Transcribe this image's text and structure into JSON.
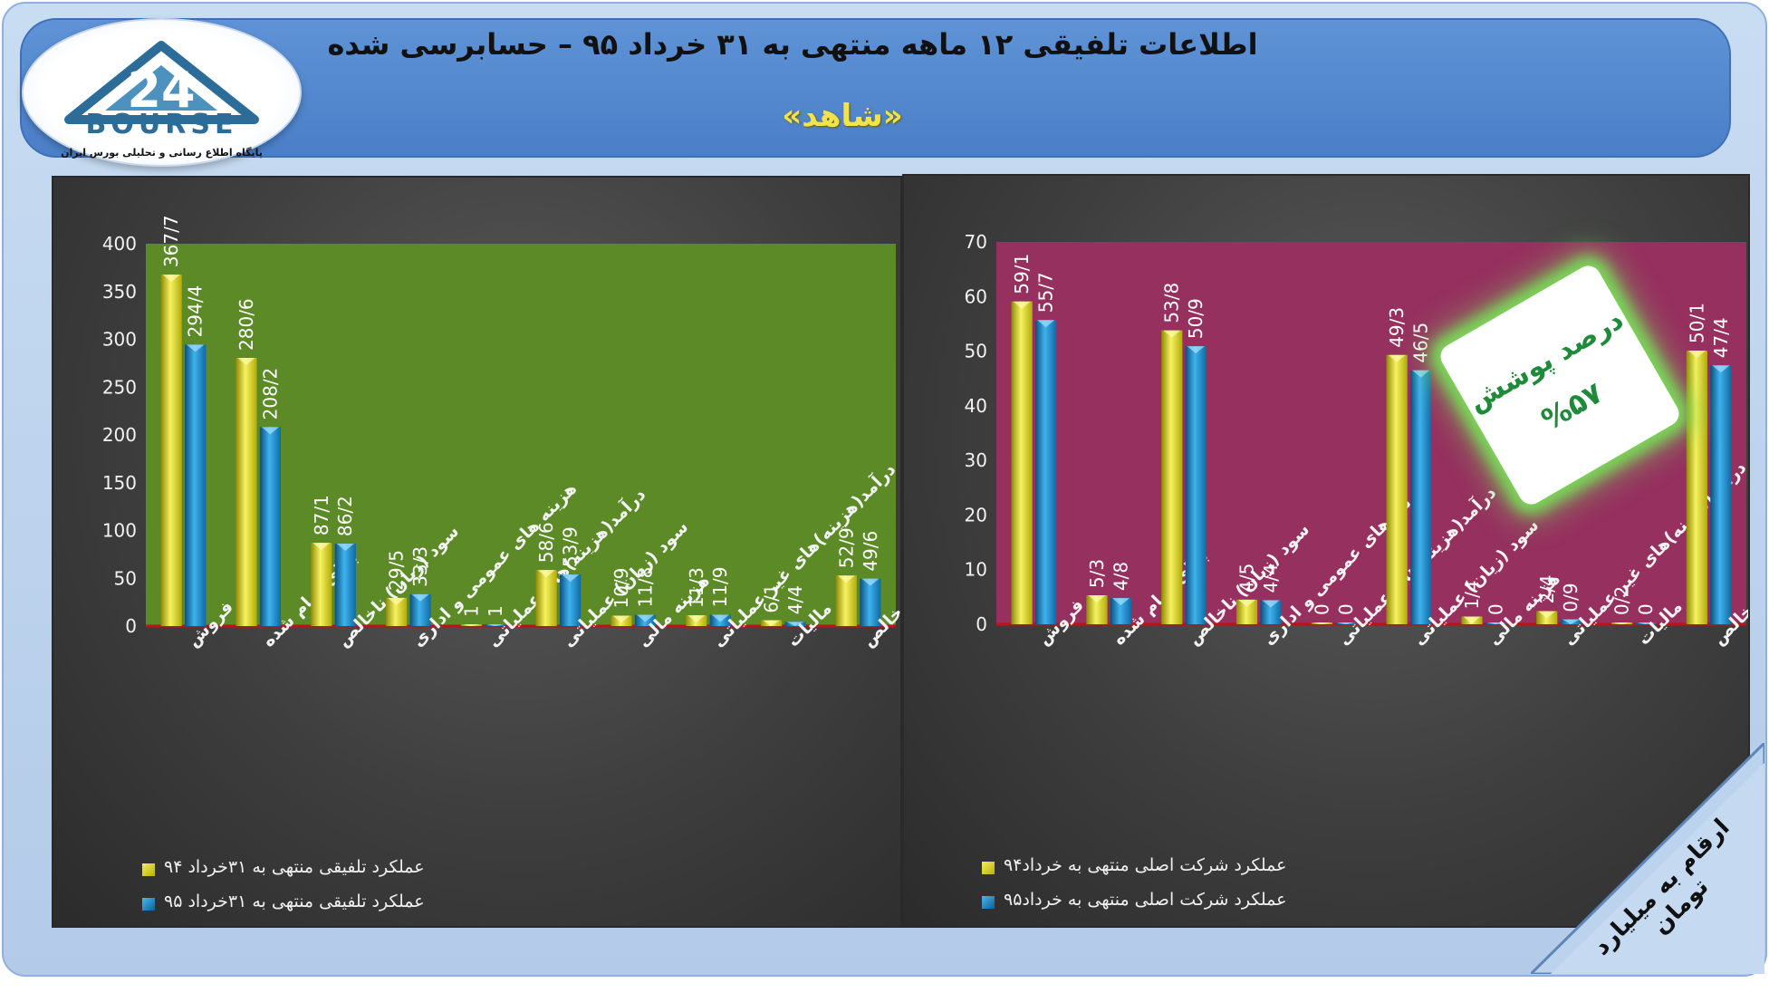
{
  "header": {
    "title": "اطلاعات تلفیقی ۱۲ ماهه منتهی به ۳۱ خرداد ۹۵ – حسابرسی شده",
    "subtitle": "«شاهد»"
  },
  "logo": {
    "number": "24",
    "word": "BOURSE",
    "tagline": "پایگاه اطلاع رسانی و تحلیلی بورس ایران"
  },
  "badge": {
    "line1": "درصد پوشش",
    "line2": "%۵۷"
  },
  "corner_note": "ارقام به میلیارد تومان",
  "colors": {
    "yellow_series": "#e9e21a",
    "blue_series": "#1f8fd1",
    "left_plot_bg": "#5b8a26",
    "right_plot_bg": "#96315f",
    "header_bg": "#4f86cc",
    "subtitle_text": "#f3e34a"
  },
  "chart_data": [
    {
      "type": "bar",
      "title": "",
      "ylim": [
        0,
        400
      ],
      "yticks": [
        0,
        50,
        100,
        150,
        200,
        250,
        300,
        350,
        400
      ],
      "grid": false,
      "legend_placement": "bottom-left",
      "categories": [
        "فروش",
        "بهای تمام شده",
        "سود (زیان) ناخالص",
        "هزینه های عمومی و اداری",
        "درآمد(هزینه)های عملیاتی",
        "سود (زیان) عملیاتی",
        "هزینه مالی",
        "درآمد(هزینه)های غیر عملیاتی",
        "مالیات",
        "سود خالص"
      ],
      "series": [
        {
          "name": "عملکرد تلفیقی منتهی به ۳۱خرداد ۹۴",
          "color": "#e9e21a",
          "values": [
            367.7,
            280.6,
            87.1,
            29.5,
            1,
            58.6,
            10.9,
            11.3,
            6.1,
            52.9
          ],
          "labels": [
            "367/7",
            "280/6",
            "87/1",
            "29/5",
            "1",
            "58/6",
            "10/9",
            "11/3",
            "6/1",
            "52/9"
          ]
        },
        {
          "name": "عملکرد تلفیقی منتهی به ۳۱خرداد ۹۵",
          "color": "#1f8fd1",
          "values": [
            294.4,
            208.2,
            86.2,
            33.3,
            1,
            53.9,
            11.8,
            11.9,
            4.4,
            49.6
          ],
          "labels": [
            "294/4",
            "208/2",
            "86/2",
            "33/3",
            "1",
            "53/9",
            "11/8",
            "11/9",
            "4/4",
            "49/6"
          ]
        }
      ]
    },
    {
      "type": "bar",
      "title": "",
      "ylim": [
        0,
        70
      ],
      "yticks": [
        0,
        10,
        20,
        30,
        40,
        50,
        60,
        70
      ],
      "grid": false,
      "legend_placement": "bottom-left",
      "categories": [
        "فروش",
        "بهای تمام شده",
        "سود (زیان) ناخالص",
        "هزینه های عمومی و اداری",
        "درآمد(هزینه)های عملیاتی",
        "سود (زیان) عملیاتی",
        "هزینه مالی",
        "درآمد(هزینه)های غیر عملیاتی",
        "مالیات",
        "سود خالص"
      ],
      "series": [
        {
          "name": "عملکرد شرکت اصلی منتهی به خرداد۹۴",
          "color": "#e9e21a",
          "values": [
            59.1,
            5.3,
            53.8,
            4.5,
            0,
            49.3,
            1.4,
            2.4,
            0.2,
            50.1
          ],
          "labels": [
            "59/1",
            "5/3",
            "53/8",
            "4/5",
            "0",
            "49/3",
            "1/4",
            "2/4",
            "0/2",
            "50/1"
          ]
        },
        {
          "name": "عملکرد شرکت اصلی منتهی به خرداد۹۵",
          "color": "#1f8fd1",
          "values": [
            55.7,
            4.8,
            50.9,
            4.4,
            0,
            46.5,
            0,
            0.9,
            0,
            47.4
          ],
          "labels": [
            "55/7",
            "4/8",
            "50/9",
            "4/4",
            "0",
            "46/5",
            "0",
            "0/9",
            "0",
            "47/4"
          ]
        }
      ]
    }
  ]
}
